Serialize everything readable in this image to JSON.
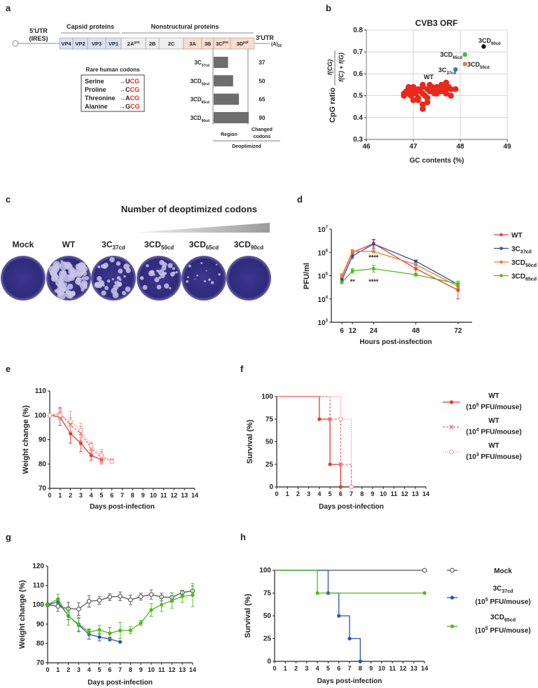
{
  "panel_labels": [
    "a",
    "b",
    "c",
    "d",
    "e",
    "f",
    "g",
    "h"
  ],
  "genome": {
    "utr5": [
      "5'UTR",
      "(IRES)"
    ],
    "utr3": "3'UTR",
    "polyA": "(A)",
    "polyA_sub": "25",
    "capsid_label": "Capsid proteins",
    "nonstructural_label": "Nonstructural proteins",
    "segments": [
      {
        "name": "VP4",
        "sup": "",
        "color": "#d9e0f3"
      },
      {
        "name": "VP2",
        "sup": "",
        "color": "#d9e0f3"
      },
      {
        "name": "VP3",
        "sup": "",
        "color": "#d9e0f3"
      },
      {
        "name": "VP1",
        "sup": "",
        "color": "#d9e0f3"
      },
      {
        "name": "2A",
        "sup": "pro",
        "color": "#efefef"
      },
      {
        "name": "2B",
        "sup": "",
        "color": "#efefef"
      },
      {
        "name": "2C",
        "sup": "",
        "color": "#efefef"
      },
      {
        "name": "3A",
        "sup": "",
        "color": "#fbdccd"
      },
      {
        "name": "3B",
        "sup": "",
        "color": "#fbdccd"
      },
      {
        "name": "3C",
        "sup": "pro",
        "color": "#fbdccd"
      },
      {
        "name": "3D",
        "sup": "pol",
        "color": "#fbdccd"
      }
    ]
  },
  "codons": {
    "title": "Rare human codons",
    "arrow": "→",
    "rows": [
      {
        "aa": "Serine",
        "first": "U",
        "rest": "CG"
      },
      {
        "aa": "Proline",
        "first": "C",
        "rest": "CG"
      },
      {
        "aa": "Threonine",
        "first": "A",
        "rest": "CG"
      },
      {
        "aa": "Alanine",
        "first": "G",
        "rest": "CG"
      }
    ],
    "highlight_color": "#e8291c"
  },
  "deopt": {
    "rows": [
      {
        "main": "3C",
        "sub": "37cd",
        "value": 37
      },
      {
        "main": "3CD",
        "sub": "50cd",
        "value": 50
      },
      {
        "main": "3CD",
        "sub": "65cd",
        "value": 65
      },
      {
        "main": "3CD",
        "sub": "90cd",
        "value": 90
      }
    ],
    "region_label": "Region",
    "changed_label": [
      "Changed",
      "codons"
    ],
    "deoptimized_label": "Deoptimized"
  },
  "plates": {
    "title": "Number of deoptimized codons",
    "items": [
      {
        "main": "Mock",
        "sub": "",
        "plaque_level": 0
      },
      {
        "main": "WT",
        "sub": "",
        "plaque_level": 1
      },
      {
        "main": "3C",
        "sub": "37cd",
        "plaque_level": 0.8
      },
      {
        "main": "3CD",
        "sub": "50cd",
        "plaque_level": 0.6
      },
      {
        "main": "3CD",
        "sub": "65cd",
        "plaque_level": 0.3
      },
      {
        "main": "3CD",
        "sub": "90cd",
        "plaque_level": 0
      }
    ]
  },
  "chart_data": [
    {
      "panel": "b",
      "type": "scatter",
      "title": "CVB3 ORF",
      "xlabel": "GC contents (%)",
      "ylabel": "CpG ratio",
      "ylabel_formula_num": "f(CG)",
      "ylabel_formula_den": "f(C) + f(G)",
      "xlim": [
        46,
        49
      ],
      "ylim": [
        0.3,
        0.8
      ],
      "xticks": [
        "46",
        "47",
        "48",
        "49"
      ],
      "yticks": [
        "0.3",
        "0.4",
        "0.5",
        "0.6",
        "0.7",
        "0.8"
      ],
      "grid": true,
      "series": [
        {
          "name": "WT",
          "sub": "",
          "color": "#e8291c",
          "points": [
            [
              46.8,
              0.5
            ],
            [
              46.8,
              0.51
            ],
            [
              46.85,
              0.52
            ],
            [
              46.9,
              0.54
            ],
            [
              46.9,
              0.51
            ],
            [
              46.95,
              0.5
            ],
            [
              47.0,
              0.54
            ],
            [
              47.0,
              0.52
            ],
            [
              47.0,
              0.48
            ],
            [
              47.05,
              0.51
            ],
            [
              47.1,
              0.53
            ],
            [
              47.1,
              0.49
            ],
            [
              47.1,
              0.48
            ],
            [
              47.15,
              0.52
            ],
            [
              47.2,
              0.55
            ],
            [
              47.2,
              0.54
            ],
            [
              47.2,
              0.51
            ],
            [
              47.2,
              0.46
            ],
            [
              47.2,
              0.44
            ],
            [
              47.25,
              0.5
            ],
            [
              47.3,
              0.53
            ],
            [
              47.3,
              0.49
            ],
            [
              47.3,
              0.47
            ],
            [
              47.35,
              0.52
            ],
            [
              47.4,
              0.54
            ],
            [
              47.4,
              0.52
            ],
            [
              47.45,
              0.53
            ],
            [
              47.5,
              0.54
            ],
            [
              47.5,
              0.53
            ],
            [
              47.5,
              0.51
            ],
            [
              47.55,
              0.53
            ],
            [
              47.6,
              0.55
            ],
            [
              47.6,
              0.52
            ],
            [
              47.65,
              0.54
            ],
            [
              47.7,
              0.56
            ],
            [
              47.7,
              0.53
            ],
            [
              47.7,
              0.51
            ],
            [
              47.75,
              0.54
            ],
            [
              47.8,
              0.53
            ],
            [
              47.8,
              0.5
            ],
            [
              47.9,
              0.53
            ],
            [
              46.95,
              0.53
            ],
            [
              47.35,
              0.55
            ],
            [
              47.45,
              0.51
            ]
          ]
        },
        {
          "name": "3C",
          "sub": "37cd",
          "color": "#3a75c4",
          "points": [
            [
              47.9,
              0.62
            ]
          ]
        },
        {
          "name": "3CD",
          "sub": "50cd",
          "color": "#ee7d3b",
          "points": [
            [
              48.1,
              0.645
            ]
          ]
        },
        {
          "name": "3CD",
          "sub": "65cd",
          "color": "#3cb94a",
          "points": [
            [
              48.1,
              0.688
            ]
          ]
        },
        {
          "name": "3CD",
          "sub": "90cd",
          "color": "#111111",
          "points": [
            [
              48.5,
              0.725
            ]
          ]
        }
      ]
    },
    {
      "panel": "d",
      "type": "line",
      "xlabel": "Hours post-insfection",
      "ylabel": "PFU/ml",
      "yscale": "log10",
      "xlim": [
        0,
        80
      ],
      "ylim": [
        3,
        7
      ],
      "xticks": [
        6,
        12,
        24,
        48,
        72
      ],
      "yticks": [
        3,
        4,
        5,
        6,
        7
      ],
      "ytick_base": "10",
      "legend": "right",
      "x": [
        6,
        12,
        24,
        48,
        72
      ],
      "series": [
        {
          "name": "WT",
          "sub": "",
          "color": "#e8413c",
          "values": [
            90000,
            1000000,
            2400000,
            200000,
            24000
          ],
          "err_factor": [
            1.25,
            1.3,
            1.4,
            1.6,
            2.4
          ]
        },
        {
          "name": "3C",
          "sub": "37cd",
          "color": "#2f4fad",
          "values": [
            65000,
            700000,
            2300000,
            420000,
            42000
          ],
          "err_factor": [
            1.2,
            1.3,
            1.6,
            1.1,
            1.2
          ]
        },
        {
          "name": "3CD",
          "sub": "50cd",
          "color": "#f47a20",
          "values": [
            100000,
            1100000,
            1100000,
            300000,
            35000
          ],
          "err_factor": [
            1.2,
            1.15,
            1.1,
            1.1,
            1.2
          ]
        },
        {
          "name": "3CD",
          "sub": "65cd",
          "color": "#4cbb17",
          "values": [
            52000,
            160000,
            200000,
            110000,
            45000
          ],
          "err_factor": [
            1.15,
            1.25,
            1.4,
            1.15,
            1.3
          ]
        }
      ],
      "annotations": [
        {
          "text": "****",
          "x": 24,
          "y": 600000,
          "color": "#f47a20"
        },
        {
          "text": "**",
          "x": 12,
          "y": 55000,
          "color": "#4cbb17"
        },
        {
          "text": "****",
          "x": 24,
          "y": 55000,
          "color": "#4cbb17"
        }
      ]
    },
    {
      "panel": "e",
      "type": "line",
      "xlabel": "Days post-infection",
      "ylabel": "Weight change (%)",
      "xlim": [
        0,
        14
      ],
      "ylim": [
        70,
        110
      ],
      "xticks": [
        0,
        1,
        2,
        3,
        4,
        5,
        6,
        7,
        8,
        9,
        10,
        11,
        12,
        13,
        14
      ],
      "yticks": [
        70,
        80,
        90,
        100,
        110
      ],
      "series": [
        {
          "name": "WT (10^5 PFU/mouse)",
          "color": "#e53a2f",
          "style": "solid",
          "marker": "dot",
          "x": [
            0,
            1,
            2,
            3,
            4,
            5
          ],
          "values": [
            100,
            99.3,
            92.5,
            88.5,
            83.5,
            81.8
          ],
          "err": [
            0,
            3.5,
            4,
            3.5,
            2,
            1.2
          ]
        },
        {
          "name": "WT (10^4 PFU/mouse)",
          "color": "#ef6a66",
          "style": "dash",
          "marker": "x",
          "x": [
            0,
            1,
            2,
            3,
            4,
            5,
            6
          ],
          "values": [
            100,
            100.8,
            96,
            92.5,
            86.5,
            82.5,
            81.5
          ],
          "err": [
            0,
            2.5,
            3,
            3,
            2,
            2.5,
            0.5
          ]
        },
        {
          "name": "WT (10^3 PFU/mouse)",
          "color": "#f59a9a",
          "style": "dot",
          "marker": "ocircle",
          "x": [
            0,
            1,
            2,
            3,
            4,
            5,
            6
          ],
          "values": [
            100,
            100,
            97.5,
            93.8,
            87.5,
            83.5,
            81
          ],
          "err": [
            0,
            2,
            4,
            3,
            1.5,
            2.5,
            0.5
          ]
        }
      ]
    },
    {
      "panel": "f",
      "type": "line",
      "subtype": "survival",
      "xlabel": "Days post-infection",
      "ylabel": "Survival (%)",
      "xlim": [
        0,
        14
      ],
      "ylim": [
        0,
        100
      ],
      "xticks": [
        0,
        1,
        2,
        3,
        4,
        5,
        6,
        7,
        8,
        9,
        10,
        11,
        12,
        13,
        14
      ],
      "yticks": [
        0,
        25,
        50,
        75,
        100
      ],
      "legend": "right",
      "series": [
        {
          "name": "WT",
          "dose_pre": "(10",
          "dose_exp": "5",
          "dose_post": " PFU/mouse)",
          "color": "#e53a2f",
          "style": "solid",
          "marker": "dot",
          "steps": [
            [
              0,
              100
            ],
            [
              4,
              75
            ],
            [
              5,
              25
            ],
            [
              6,
              0
            ]
          ]
        },
        {
          "name": "WT",
          "dose_pre": "(10",
          "dose_exp": "4",
          "dose_post": " PFU/mouse)",
          "color": "#ef6a66",
          "style": "dash",
          "marker": "x",
          "steps": [
            [
              0,
              100
            ],
            [
              5,
              75
            ],
            [
              6,
              25
            ],
            [
              7,
              0
            ]
          ]
        },
        {
          "name": "WT",
          "dose_pre": "(10",
          "dose_exp": "3",
          "dose_post": " PFU/mouse)",
          "color": "#f59a9a",
          "style": "dot",
          "marker": "ocircle",
          "steps": [
            [
              0,
              100
            ],
            [
              6,
              75
            ],
            [
              7,
              0
            ]
          ]
        }
      ]
    },
    {
      "panel": "g",
      "type": "line",
      "xlabel": "Days post-infection",
      "ylabel": "Weight change (%)",
      "xlim": [
        0,
        14
      ],
      "ylim": [
        70,
        120
      ],
      "xticks": [
        0,
        1,
        2,
        3,
        4,
        5,
        6,
        7,
        8,
        9,
        10,
        11,
        12,
        13,
        14
      ],
      "yticks": [
        70,
        80,
        90,
        100,
        110,
        120
      ],
      "series": [
        {
          "name": "Mock",
          "color": "#555555",
          "style": "solid",
          "marker": "ocircle",
          "x": [
            0,
            1,
            2,
            3,
            4,
            5,
            6,
            7,
            8,
            9,
            10,
            11,
            12,
            13,
            14
          ],
          "values": [
            100,
            99.2,
            98,
            97.8,
            101.8,
            102.3,
            104,
            104.4,
            102.5,
            104.2,
            105.3,
            104,
            103.8,
            106.3,
            107.2
          ],
          "err": [
            0,
            2.5,
            3.3,
            3.3,
            3,
            2,
            1.8,
            2.2,
            2.5,
            1.8,
            2.4,
            2,
            2.4,
            1.2,
            2.5
          ]
        },
        {
          "name": "3C37cd",
          "color": "#2f4fad",
          "style": "solid",
          "marker": "dot",
          "x": [
            0,
            1,
            2,
            3,
            4,
            5,
            6,
            7
          ],
          "values": [
            100,
            101.5,
            94.3,
            89.5,
            84.7,
            83.3,
            82.3,
            80.8
          ],
          "err": [
            0,
            1,
            2,
            3.5,
            2.5,
            2,
            1,
            0
          ]
        },
        {
          "name": "3CD65cd",
          "color": "#4cbb17",
          "style": "solid",
          "marker": "dot",
          "x": [
            0,
            1,
            2,
            3,
            4,
            5,
            6,
            7,
            8,
            9,
            10,
            11,
            12,
            13,
            14
          ],
          "values": [
            100,
            103,
            94,
            90,
            86,
            87,
            85.3,
            86.7,
            86.8,
            90.6,
            97.3,
            100,
            102.2,
            104.3,
            105
          ],
          "err": [
            0,
            2.5,
            4.5,
            3.5,
            1.5,
            2.3,
            3,
            4.2,
            1.8,
            1.3,
            3.3,
            3.5,
            4,
            3,
            6
          ]
        }
      ]
    },
    {
      "panel": "h",
      "type": "line",
      "subtype": "survival",
      "xlabel": "Days post-infection",
      "ylabel": "Survival (%)",
      "xlim": [
        0,
        14
      ],
      "ylim": [
        0,
        100
      ],
      "xticks": [
        0,
        1,
        2,
        3,
        4,
        5,
        6,
        7,
        8,
        9,
        10,
        11,
        12,
        13,
        14
      ],
      "yticks": [
        0,
        25,
        50,
        75,
        100
      ],
      "legend": "right",
      "series": [
        {
          "name": "Mock",
          "sub": "",
          "dose_pre": "",
          "dose_exp": "",
          "dose_post": "",
          "color": "#555555",
          "style": "solid",
          "marker": "ocircle",
          "steps": [
            [
              0,
              100
            ],
            [
              14,
              100
            ]
          ]
        },
        {
          "name": "3C",
          "sub": "37cd",
          "dose_pre": "(10",
          "dose_exp": "5",
          "dose_post": " PFU/mouse)",
          "color": "#2f4fad",
          "style": "solid",
          "marker": "dot",
          "steps": [
            [
              0,
              100
            ],
            [
              5,
              75
            ],
            [
              6,
              50
            ],
            [
              7,
              25
            ],
            [
              8,
              0
            ]
          ]
        },
        {
          "name": "3CD",
          "sub": "65cd",
          "dose_pre": "(10",
          "dose_exp": "5",
          "dose_post": " PFU/mouse)",
          "color": "#4cbb17",
          "style": "solid",
          "marker": "dot",
          "steps": [
            [
              0,
              100
            ],
            [
              4,
              75
            ],
            [
              14,
              75
            ]
          ]
        }
      ]
    }
  ]
}
